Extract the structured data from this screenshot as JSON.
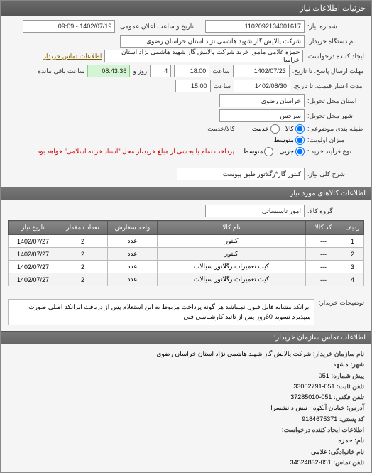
{
  "window": {
    "title": "جزئیات اطلاعات نیاز"
  },
  "header": {
    "need_number_label": "شماره نیاز:",
    "need_number": "1102092134001617",
    "announce_label": "تاریخ و ساعت اعلان عمومی:",
    "announce_value": "1402/07/19 - 09:09",
    "buyer_org_label": "نام دستگاه خریدار:",
    "buyer_org": "شرکت پالایش گاز شهید هاشمی نژاد   استان خراسان رضوی",
    "requester_label": "ایجاد کننده درخواست:",
    "requester": "حمزه غلامی مامور خرید شرکت پالایش گاز شهید هاشمی نژاد   استان خراسا",
    "contact_link": "اطلاعات تماس خریدار",
    "deadline_resp_label": "مهلت ارسال پاسخ: تا تاریخ:",
    "deadline_resp_date": "1402/07/23",
    "time1_label": "ساعت",
    "deadline_resp_time": "18:00",
    "days_label": "روز و",
    "days_value": "4",
    "remain_label": "ساعت باقی مانده",
    "remain_time": "08:43:36",
    "validity_label": "مدت اعتبار قیمت: تا تاریخ:",
    "validity_date": "1402/08/30",
    "time2_label": "ساعت",
    "validity_time": "15:00",
    "province_label": "استان محل تحویل:",
    "province": "خراسان رضوی",
    "city_label": "شهر محل تحویل:",
    "city": "سرخس",
    "category_label": "طبقه بندی موضوعی:",
    "service_label": "کالا/خدمت",
    "priority_label": "میزان اولویت:",
    "process_label": "نوع فرآیند خرید :",
    "process_hint": "پرداخت تمام یا بخشی از مبلغ خرید،از محل \"اسناد خزانه اسلامی\" خواهد بود.",
    "radios": {
      "goods": "کالا",
      "service": "خدمت",
      "medium": "متوسط",
      "partial": "جزیی",
      "mid2": "متوسط"
    }
  },
  "need_key": {
    "label": "شرح کلی نیاز:",
    "value": "کنتور گاز*رگلاتور طبق پیوست"
  },
  "goods_section": {
    "title": "اطلاعات کالاهای مورد نیاز",
    "group_label": "گروه کالا:",
    "group_value": "امور تاسیساتی"
  },
  "table": {
    "headers": [
      "ردیف",
      "کد کالا",
      "نام کالا",
      "واحد سفارش",
      "تعداد / مقدار",
      "تاریخ نیاز"
    ],
    "rows": [
      [
        "1",
        "---",
        "کنتور",
        "عدد",
        "2",
        "1402/07/27"
      ],
      [
        "2",
        "---",
        "کنتور",
        "عدد",
        "2",
        "1402/07/27"
      ],
      [
        "3",
        "---",
        "کیت تعمیرات رگلاتور سیالات",
        "عدد",
        "2",
        "1402/07/27"
      ],
      [
        "4",
        "---",
        "کیت تعمیرات رگلاتور سیالات",
        "عدد",
        "2",
        "1402/07/27"
      ]
    ],
    "col_widths": [
      "32px",
      "50px",
      "auto",
      "70px",
      "70px",
      "70px"
    ]
  },
  "description": {
    "label": "توضیحات خریدار:",
    "text": "ایرانکد مشابه قابل قبول نمیباشد هر گونه پرداخت مربوط به این استعلام پس از دریافت ایرانکد اصلی صورت میپذیرد تسویه 60روز پس از تائید کارشناسی فنی"
  },
  "contact_section": {
    "title": "اطلاعات تماس سازمان خریدار:"
  },
  "contact": {
    "org_label": "نام سازمان خریدار:",
    "org": "شرکت پالایش گاز شهید هاشمی نژاد استان خراسان رضوی",
    "city_label": "شهر:",
    "city": "مشهد",
    "pre_label": "پیش شماره:",
    "pre": "051",
    "phone_label": "تلفن ثابت:",
    "phone": "051-33002791",
    "fax_label": "تلفن فکس:",
    "fax": "051-37285010",
    "addr_label": "آدرس:",
    "addr": "خیابان آبکوه - نبش دانشسرا",
    "zip_label": "کد پستی:",
    "zip": "9184675371",
    "creator_title": "اطلاعات ایجاد کننده درخواست:",
    "name_label": "نام:",
    "name": "حمزه",
    "lname_label": "نام خانوادگی:",
    "lname": "غلامی",
    "tel_label": "تلفن تماس:",
    "tel": "051-34524832"
  },
  "colors": {
    "header_bg": "#6a6a6a",
    "field_green": "#d4f5d4",
    "hint": "#cc0000"
  }
}
